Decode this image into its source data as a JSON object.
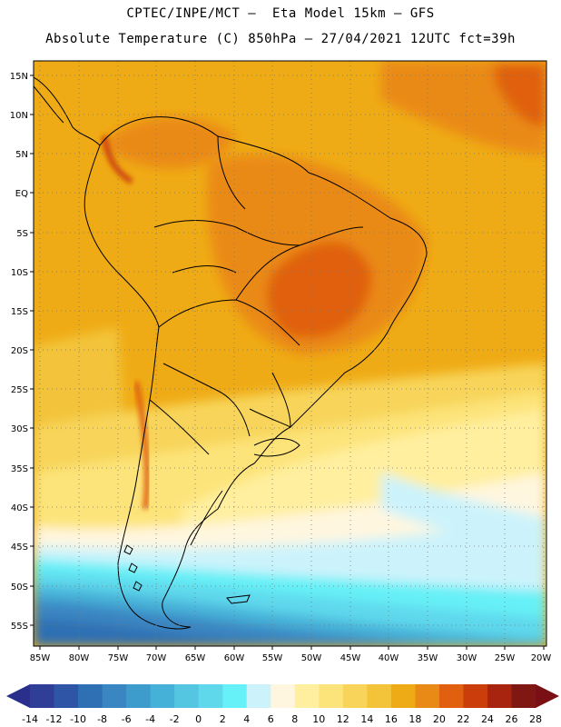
{
  "header": {
    "line1": "CPTEC/INPE/MCT –  Eta Model 15km – GFS",
    "line2": "Absolute Temperature (C) 850hPa – 27/04/2021 12UTC fct=39h"
  },
  "axes": {
    "lat_labels": [
      "15N",
      "10N",
      "5N",
      "EQ",
      "5S",
      "10S",
      "15S",
      "20S",
      "25S",
      "30S",
      "35S",
      "40S",
      "45S",
      "50S",
      "55S"
    ],
    "lon_labels": [
      "85W",
      "80W",
      "75W",
      "70W",
      "65W",
      "60W",
      "55W",
      "50W",
      "45W",
      "40W",
      "35W",
      "30W",
      "25W",
      "20W"
    ]
  },
  "colorbar": {
    "labels": [
      "-14",
      "-12",
      "-10",
      "-8",
      "-6",
      "-4",
      "-2",
      "0",
      "2",
      "4",
      "6",
      "8",
      "10",
      "12",
      "14",
      "16",
      "18",
      "20",
      "22",
      "24",
      "26",
      "28"
    ],
    "low_color": "#2a2f8c",
    "high_color": "#7a0f16",
    "colors": [
      "#2f3f97",
      "#2f56a6",
      "#2f6fb4",
      "#3a86c2",
      "#3e9ccd",
      "#46b1d8",
      "#55c6e2",
      "#5fd8ec",
      "#66f0f7",
      "#ccf3fb",
      "#fff6df",
      "#ffef9f",
      "#fde47a",
      "#f8d55a",
      "#f3c43a",
      "#efab15",
      "#ea8a16",
      "#e06010",
      "#cc3d0c",
      "#a8240e",
      "#7f1713"
    ]
  }
}
